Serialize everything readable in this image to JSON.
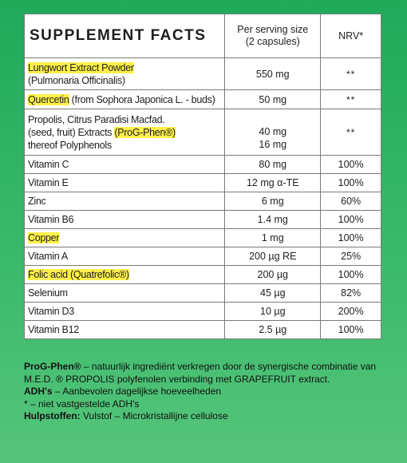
{
  "table": {
    "header": {
      "title": "SUPPLEMENT FACTS",
      "amount_line1": "Per serving size",
      "amount_line2": "(2 capsules)",
      "nrv": "NRV*"
    },
    "rows": [
      {
        "name_hl": "Lungwort Extract Powder",
        "name_sub": "(Pulmonaria Officinalis)",
        "amount": "550 mg",
        "nrv": "**"
      },
      {
        "name_hl": "Quercetin",
        "name_rest": " (from Sophora Japonica L. - buds)",
        "amount": "50 mg",
        "nrv": "**"
      },
      {
        "name_l1": "Propolis, Citrus Paradisi Macfad.",
        "name_l2_pre": "(seed, fruit) Extracts ",
        "name_l2_hl": "(ProG-Phen®)",
        "name_l3": "thereof Polyphenols",
        "amount": "40 mg",
        "amount2": "16 mg",
        "nrv": "**"
      },
      {
        "name": "Vitamin C",
        "amount": "80 mg",
        "nrv": "100%"
      },
      {
        "name": "Vitamin E",
        "amount": "12 mg α-TE",
        "nrv": "100%"
      },
      {
        "name": "Zinc",
        "amount": "6 mg",
        "nrv": "60%"
      },
      {
        "name": "Vitamin B6",
        "amount": "1.4 mg",
        "nrv": "100%"
      },
      {
        "name_hl": "Copper",
        "amount": "1 mg",
        "nrv": "100%"
      },
      {
        "name": "Vitamin A",
        "amount": "200 µg RE",
        "nrv": "25%"
      },
      {
        "name_hl": "Folic acid (Quatrefolic®)",
        "amount": "200 µg",
        "nrv": "100%"
      },
      {
        "name": "Selenium",
        "amount": "45 µg",
        "nrv": "82%"
      },
      {
        "name": "Vitamin D3",
        "amount": "10 µg",
        "nrv": "200%"
      },
      {
        "name": "Vitamin B12",
        "amount": "2.5 µg",
        "nrv": "100%"
      }
    ]
  },
  "footer": {
    "progphen_label": "ProG-Phen®",
    "progphen_text": " – natuurlijk ingrediënt verkregen door de synergische combinatie van M.E.D. ® PROPOLIS polyfenolen verbinding met GRAPEFRUIT extract.",
    "adh_label": "ADH's",
    "adh_text": " – Aanbevolen dagelijkse hoeveelheden",
    "star_text": "* – niet vastgestelde ADH's",
    "hulp_label": "Hulpstoffen:",
    "hulp_text": " Vulstof – Microkristallijne cellulose"
  },
  "colors": {
    "background_top": "#1faa5a",
    "background_bottom": "#55c57a",
    "highlight": "#fff04a"
  }
}
